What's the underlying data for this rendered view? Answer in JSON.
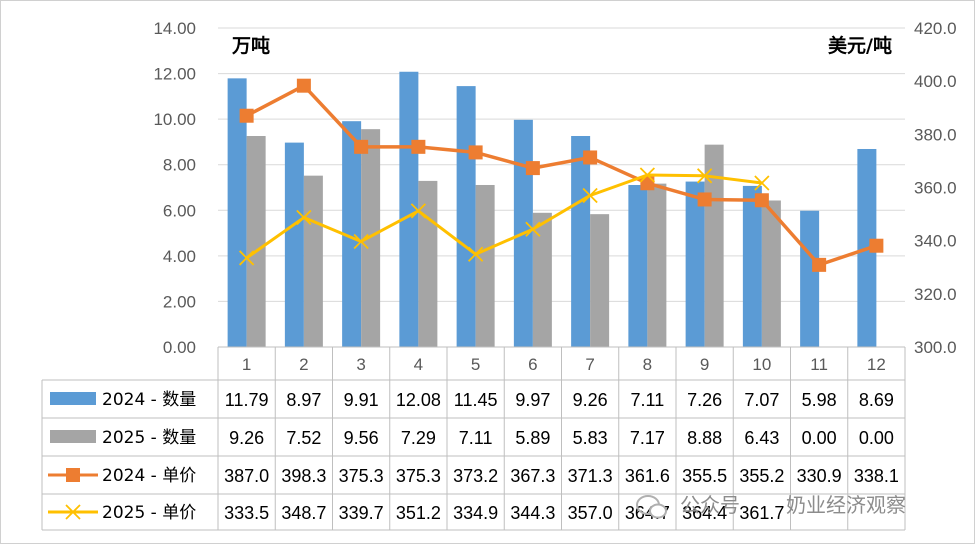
{
  "chart_data": {
    "type": "bar",
    "left_unit": "万吨",
    "right_unit": "美元/吨",
    "categories": [
      "1",
      "2",
      "3",
      "4",
      "5",
      "6",
      "7",
      "8",
      "9",
      "10",
      "11",
      "12"
    ],
    "left_axis": {
      "min": 0,
      "max": 14,
      "step": 2,
      "ticks": [
        "0.00",
        "2.00",
        "4.00",
        "6.00",
        "8.00",
        "10.00",
        "12.00",
        "14.00"
      ]
    },
    "right_axis": {
      "min": 300,
      "max": 420,
      "step": 20,
      "ticks": [
        "300.0",
        "320.0",
        "340.0",
        "360.0",
        "380.0",
        "400.0",
        "420.0"
      ]
    },
    "grid": true,
    "legend": "data-table",
    "bar_series": [
      {
        "name": "2024 - 数量",
        "color": "#5B9BD5",
        "values": [
          11.79,
          8.97,
          9.91,
          12.08,
          11.45,
          9.97,
          9.26,
          7.11,
          7.26,
          7.07,
          5.98,
          8.69
        ],
        "labels": [
          "11.79",
          "8.97",
          "9.91",
          "12.08",
          "11.45",
          "9.97",
          "9.26",
          "7.11",
          "7.26",
          "7.07",
          "5.98",
          "8.69"
        ]
      },
      {
        "name": "2025 - 数量",
        "color": "#A5A5A5",
        "values": [
          9.26,
          7.52,
          9.56,
          7.29,
          7.11,
          5.89,
          5.83,
          7.17,
          8.88,
          6.43,
          0.0,
          0.0
        ],
        "labels": [
          "9.26",
          "7.52",
          "9.56",
          "7.29",
          "7.11",
          "5.89",
          "5.83",
          "7.17",
          "8.88",
          "6.43",
          "0.00",
          "0.00"
        ]
      }
    ],
    "line_series": [
      {
        "name": "2024 - 单价",
        "color": "#ED7D31",
        "marker": "square",
        "values": [
          387.0,
          398.3,
          375.3,
          375.3,
          373.2,
          367.3,
          371.3,
          361.6,
          355.5,
          355.2,
          330.9,
          338.1
        ],
        "labels": [
          "387.0",
          "398.3",
          "375.3",
          "375.3",
          "373.2",
          "367.3",
          "371.3",
          "361.6",
          "355.5",
          "355.2",
          "330.9",
          "338.1"
        ]
      },
      {
        "name": "2025 - 单价",
        "color": "#FFC000",
        "marker": "x",
        "values": [
          333.5,
          348.7,
          339.7,
          351.2,
          334.9,
          344.3,
          357.0,
          364.7,
          364.4,
          361.7
        ],
        "labels": [
          "333.5",
          "348.7",
          "339.7",
          "351.2",
          "334.9",
          "344.3",
          "357.0",
          "364.7",
          "364.4",
          "361.7"
        ]
      }
    ]
  },
  "watermark": {
    "text": "奶业经济观察",
    "faded": "公众号"
  }
}
